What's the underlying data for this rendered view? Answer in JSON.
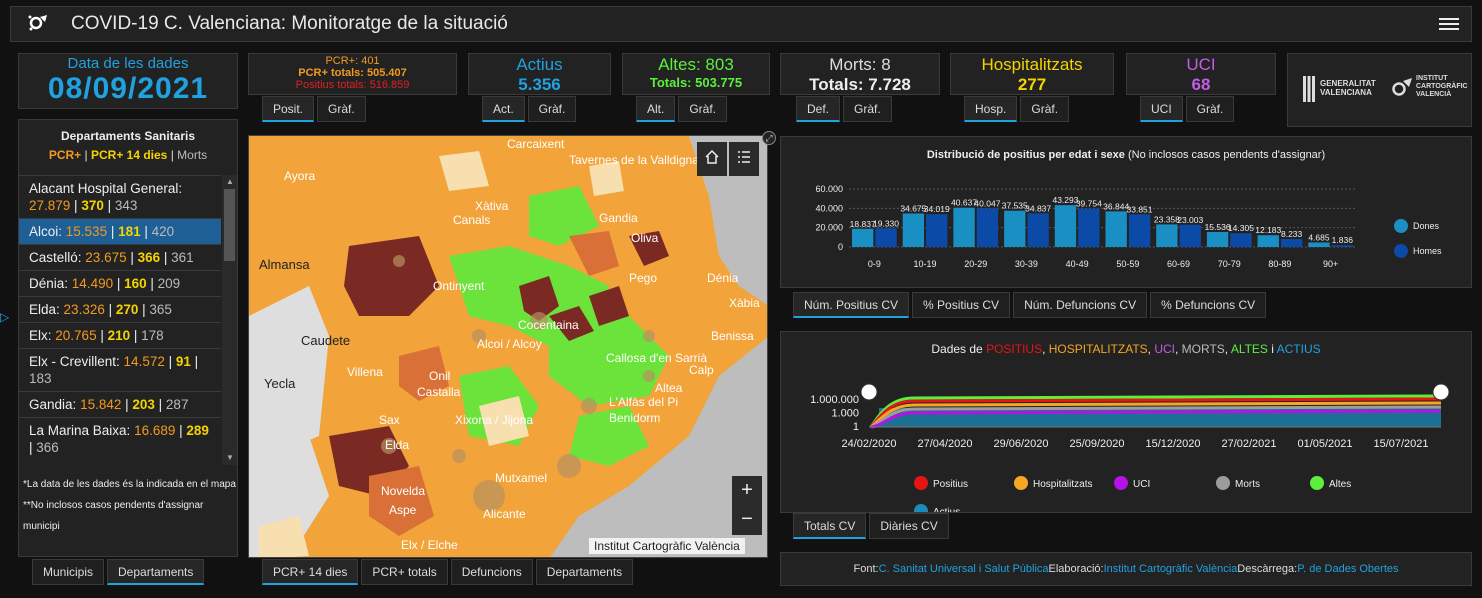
{
  "header": {
    "logo_icon": "virus-logo-icon",
    "title": "COVID-19 C. Valenciana: Monitoratge de la situació",
    "menu_icon": "hamburger-menu-icon"
  },
  "date": {
    "label": "Data de les dades",
    "value": "08/09/2021"
  },
  "pcr": {
    "line1": "PCR+: 401",
    "line2": "PCR+ totals: 505.407",
    "line3": "Positius totals: 516.859",
    "tabs": [
      "Posit.",
      "Gràf."
    ]
  },
  "actius": {
    "label": "Actius",
    "value": "5.356",
    "tabs": [
      "Act.",
      "Gràf."
    ]
  },
  "altes": {
    "label": "Altes: 803",
    "total": "Totals: 503.775",
    "tabs": [
      "Alt.",
      "Gràf."
    ]
  },
  "morts": {
    "label": "Morts: 8",
    "total": "Totals: 7.728",
    "tabs": [
      "Def.",
      "Gràf."
    ]
  },
  "hosp": {
    "label": "Hospitalitzats",
    "value": "277",
    "tabs": [
      "Hosp.",
      "Gràf."
    ]
  },
  "uci": {
    "label": "UCI",
    "value": "68",
    "tabs": [
      "UCI",
      "Gràf."
    ]
  },
  "logos": {
    "gva_1": "GENERALITAT",
    "gva_2": "VALENCIANA",
    "icv_1": "INSTITUT",
    "icv_2": "CARTOGRÀFIC",
    "icv_3": "VALENCIÀ"
  },
  "sidebar": {
    "title": "Departaments Sanitaris",
    "legend_pcr": "PCR+",
    "legend_pcr14": "PCR+ 14 dies",
    "legend_morts": "Morts",
    "items": [
      {
        "name": "Alacant Hospital General:",
        "pcr": "27.879",
        "pcr14": "370",
        "morts": "343"
      },
      {
        "name": "Alcoi:",
        "pcr": "15.535",
        "pcr14": "181",
        "morts": "420"
      },
      {
        "name": "Castelló:",
        "pcr": "23.675",
        "pcr14": "366",
        "morts": "361"
      },
      {
        "name": "Dénia:",
        "pcr": "14.490",
        "pcr14": "160",
        "morts": "209"
      },
      {
        "name": "Elda:",
        "pcr": "23.326",
        "pcr14": "270",
        "morts": "365"
      },
      {
        "name": "Elx:",
        "pcr": "20.765",
        "pcr14": "210",
        "morts": "178"
      },
      {
        "name": "Elx - Crevillent:",
        "pcr": "14.572",
        "pcr14": "91",
        "morts": "183"
      },
      {
        "name": "Gandia:",
        "pcr": "15.842",
        "pcr14": "203",
        "morts": "287"
      },
      {
        "name": "La Marina Baixa:",
        "pcr": "16.689",
        "pcr14": "289",
        "morts": "366"
      }
    ],
    "note1": "*La data de les dades és la indicada en el mapa",
    "note2": "**No inclosos casos pendents d'assignar municipi",
    "tabs": [
      "Municipis",
      "Departaments"
    ]
  },
  "map": {
    "places": [
      "Carcaixent",
      "Tavernes de la Valldigna",
      "Ayora",
      "Xàtiva",
      "Canals",
      "Gandia",
      "Oliva",
      "Almansa",
      "Ontinyent",
      "Pego",
      "Dénia",
      "Xàbia",
      "Caudete",
      "Cocentaina",
      "Alcoi / Alcoy",
      "Benissa",
      "Yecla",
      "Villena",
      "Onil",
      "Castalla",
      "Callosa d'en Sarrià",
      "Calp",
      "Altea",
      "L'Alfàs del Pi",
      "Benidorm",
      "Sax",
      "Xixona / Jijona",
      "Elda",
      "Mutxamel",
      "Novelda",
      "Aspe",
      "Alicante",
      "Elx / Elche"
    ],
    "attribution": "Institut Cartogràfic València",
    "zoom_in": "+",
    "zoom_out": "−",
    "tabs": [
      "PCR+ 14 dies",
      "PCR+ totals",
      "Defuncions",
      "Departaments"
    ]
  },
  "chart_age": {
    "title_bold": "Distribució de positius per edat i sexe",
    "title_rest": " (No inclosos casos pendents d'assignar)",
    "tabs": [
      "Núm. Positius CV",
      "% Positius CV",
      "Núm. Defuncions CV",
      "% Defuncions CV"
    ]
  },
  "chart_series": {
    "title_prefix": "Dades de ",
    "t_pos": "POSITIUS",
    "t_hosp": "HOSPITALITZATS",
    "t_uci": "UCI",
    "t_morts": "MORTS",
    "t_altes": "ALTES",
    "t_i": " i ",
    "t_actius": "ACTIUS",
    "tabs": [
      "Totals CV",
      "Diàries CV"
    ]
  },
  "footer": {
    "font_label": "Font: ",
    "font_val": "C. Sanitat Universal i Salut Pública",
    "elab_label": " Elaboració: ",
    "elab_val": "Institut Cartogràfic València",
    "desc_label": " Descàrrega: ",
    "desc_val": "P. de Dades Obertes"
  },
  "chart_data": [
    {
      "type": "bar",
      "title": "Distribució de positius per edat i sexe (No inclosos casos pendents d'assignar)",
      "categories": [
        "0-9",
        "10-19",
        "20-29",
        "30-39",
        "40-49",
        "50-59",
        "60-69",
        "70-79",
        "80-89",
        "90+"
      ],
      "series": [
        {
          "name": "Dones",
          "color": "#1a8fc4",
          "values": [
            18837,
            34675,
            40637,
            37535,
            43293,
            36844,
            23358,
            15536,
            12183,
            4685
          ],
          "labels": [
            "18.837",
            "34.675",
            "40.637",
            "37.535",
            "43.293",
            "36.844",
            "23.358",
            "15.536",
            "12.183",
            "4.685"
          ]
        },
        {
          "name": "Homes",
          "color": "#0b4aa6",
          "values": [
            19330,
            34019,
            40047,
            34837,
            39754,
            33851,
            23003,
            14305,
            8233,
            1836
          ],
          "labels": [
            "19.330",
            "34.019",
            "40.047",
            "34.837",
            "39.754",
            "33.851",
            "23.003",
            "14.305",
            "8.233",
            "1.836"
          ]
        }
      ],
      "yticks": [
        "60.000",
        "40.000",
        "20.000",
        "0"
      ],
      "ylim": [
        0,
        60000
      ]
    },
    {
      "type": "line",
      "title": "Dades de POSITIUS, HOSPITALITZATS, UCI, MORTS, ALTES i ACTIUS",
      "x_ticks": [
        "24/02/2020",
        "27/04/2020",
        "29/06/2020",
        "25/09/2020",
        "15/12/2020",
        "27/02/2021",
        "01/05/2021",
        "15/07/2021"
      ],
      "y_ticks": [
        "1.000.000",
        "1.000",
        "1"
      ],
      "scale": "log",
      "series": [
        {
          "name": "Positius",
          "color": "#e51515"
        },
        {
          "name": "Hospitalitzats",
          "color": "#f5a623"
        },
        {
          "name": "UCI",
          "color": "#b512e6"
        },
        {
          "name": "Morts",
          "color": "#9c9c9c"
        },
        {
          "name": "Altes",
          "color": "#5cf03c"
        },
        {
          "name": "Actius",
          "color": "#1b8cb8"
        }
      ]
    }
  ]
}
